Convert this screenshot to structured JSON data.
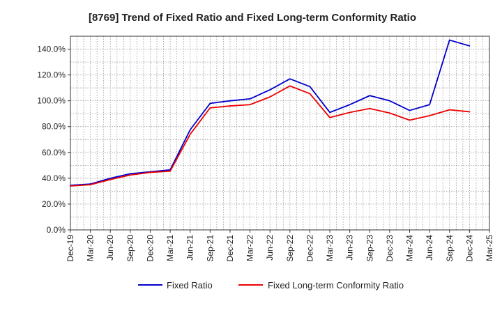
{
  "chart_data": {
    "type": "line",
    "title": "[8769]  Trend of Fixed Ratio and Fixed Long-term Conformity Ratio",
    "xlabel": "",
    "ylabel": "",
    "x_ticks": [
      "Dec-19",
      "Mar-20",
      "Jun-20",
      "Sep-20",
      "Dec-20",
      "Mar-21",
      "Jun-21",
      "Sep-21",
      "Dec-21",
      "Mar-22",
      "Jun-22",
      "Sep-22",
      "Dec-22",
      "Mar-23",
      "Jun-23",
      "Sep-23",
      "Dec-23",
      "Mar-24",
      "Jun-24",
      "Sep-24",
      "Dec-24",
      "Mar-25"
    ],
    "y_ticks": [
      "0.0%",
      "20.0%",
      "40.0%",
      "60.0%",
      "80.0%",
      "100.0%",
      "120.0%",
      "140.0%"
    ],
    "ylim": [
      0,
      150
    ],
    "grid": true,
    "legend_position": "bottom",
    "series": [
      {
        "name": "Fixed Ratio",
        "color": "#0000cc",
        "x": [
          "Dec-19",
          "Mar-20",
          "Jun-20",
          "Sep-20",
          "Dec-20",
          "Mar-21",
          "Jun-21",
          "Sep-21",
          "Dec-21",
          "Mar-22",
          "Jun-22",
          "Sep-22",
          "Dec-22",
          "Mar-23",
          "Jun-23",
          "Sep-23",
          "Dec-23",
          "Mar-24",
          "Jun-24",
          "Sep-24",
          "Dec-24"
        ],
        "values": [
          34.5,
          35.5,
          40.0,
          43.5,
          45.0,
          46.5,
          77.5,
          98.0,
          100.0,
          101.5,
          108.5,
          117.0,
          111.0,
          91.0,
          97.0,
          104.0,
          100.0,
          92.5,
          97.0,
          147.0,
          142.5
        ]
      },
      {
        "name": "Fixed Long-term Conformity Ratio",
        "color": "#ee0000",
        "x": [
          "Dec-19",
          "Mar-20",
          "Jun-20",
          "Sep-20",
          "Dec-20",
          "Mar-21",
          "Jun-21",
          "Sep-21",
          "Dec-21",
          "Mar-22",
          "Jun-22",
          "Sep-22",
          "Dec-22",
          "Mar-23",
          "Jun-23",
          "Sep-23",
          "Dec-23",
          "Mar-24",
          "Jun-24",
          "Sep-24",
          "Dec-24"
        ],
        "values": [
          34.0,
          35.0,
          39.0,
          42.5,
          44.5,
          45.5,
          74.0,
          94.5,
          96.0,
          97.0,
          103.0,
          111.5,
          105.5,
          87.0,
          91.0,
          94.0,
          90.5,
          85.0,
          88.5,
          93.0,
          91.5
        ]
      }
    ]
  }
}
